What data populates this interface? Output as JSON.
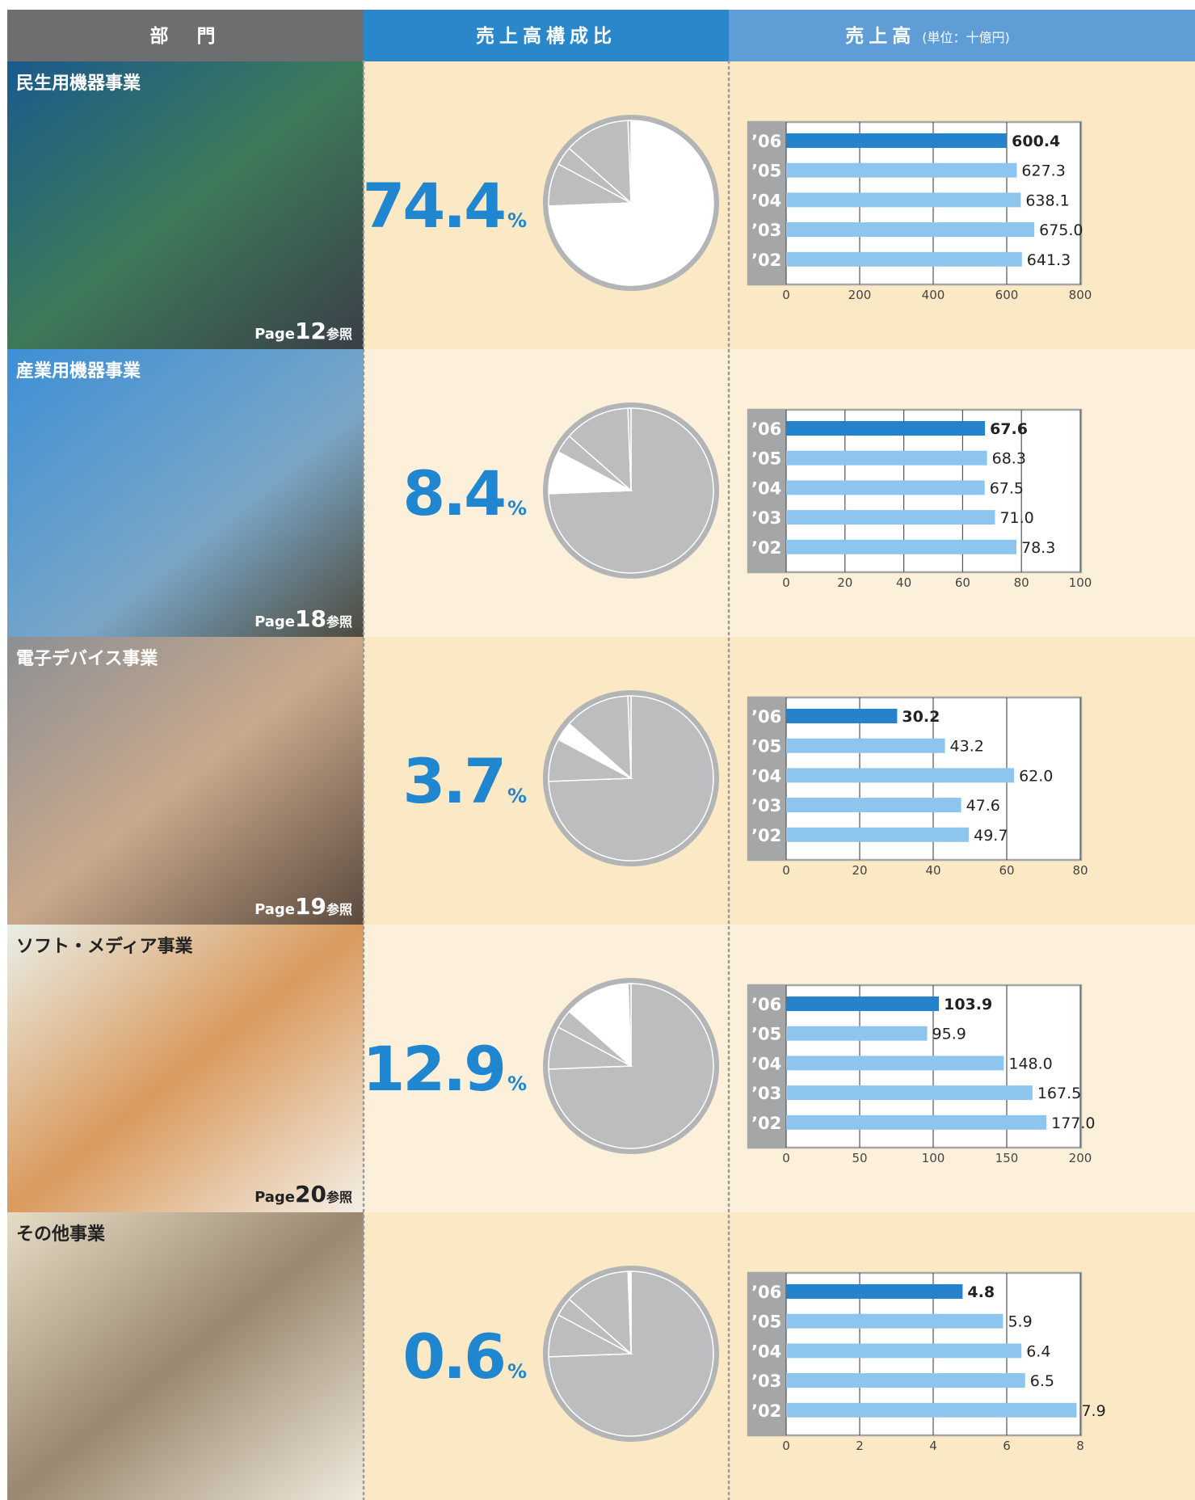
{
  "header": {
    "segment": "部　門",
    "share": "売上高構成比",
    "sales": "売上高",
    "unit": "(単位：十億円)"
  },
  "segments": [
    {
      "page": {
        "prefix": "Page",
        "number": 12,
        "suffix": "参照"
      }
    },
    {
      "page": {
        "prefix": "Page",
        "number": 18,
        "suffix": "参照"
      }
    },
    {
      "page": {
        "prefix": "Page",
        "number": 19,
        "suffix": "参照"
      }
    },
    {
      "page": {
        "prefix": "Page",
        "number": 20,
        "suffix": "参照"
      }
    },
    {
      "page": null
    }
  ],
  "chart_data": [
    {
      "type": "pie",
      "categories": [
        "民生用機器事業",
        "産業用機器事業",
        "電子デバイス事業",
        "ソフト・メディア事業",
        "その他事業"
      ],
      "values": [
        74.4,
        8.4,
        3.7,
        12.9,
        0.6
      ],
      "unit": "%",
      "color": "#bcbdbf",
      "highlight_color": "#ffffff",
      "label_color": "#1f86cf"
    },
    {
      "type": "barh",
      "categories": [
        "’06",
        "’05",
        "’04",
        "’03",
        "’02"
      ],
      "values": [
        600.4,
        627.3,
        638.1,
        675.0,
        641.3
      ],
      "value_labels": [
        "600.4",
        "627.3",
        "638.1",
        "675.0",
        "641.3"
      ],
      "xlim": [
        0,
        800
      ],
      "xticks": [
        0,
        200,
        400,
        600,
        800
      ],
      "color": "#8dc5ee",
      "highlight_color": "#2582cc",
      "grid": true
    },
    {
      "type": "barh",
      "categories": [
        "’06",
        "’05",
        "’04",
        "’03",
        "’02"
      ],
      "values": [
        67.6,
        68.3,
        67.5,
        71.0,
        78.3
      ],
      "value_labels": [
        "67.6",
        "68.3",
        "67.5",
        "71.0",
        "78.3"
      ],
      "xlim": [
        0,
        100
      ],
      "xticks": [
        0,
        20,
        40,
        60,
        80,
        100
      ],
      "color": "#8dc5ee",
      "highlight_color": "#2582cc",
      "grid": true
    },
    {
      "type": "barh",
      "categories": [
        "’06",
        "’05",
        "’04",
        "’03",
        "’02"
      ],
      "values": [
        30.2,
        43.2,
        62.0,
        47.6,
        49.7
      ],
      "value_labels": [
        "30.2",
        "43.2",
        "62.0",
        "47.6",
        "49.7"
      ],
      "xlim": [
        0,
        80
      ],
      "xticks": [
        0,
        20,
        40,
        60,
        80
      ],
      "color": "#8dc5ee",
      "highlight_color": "#2582cc",
      "grid": true
    },
    {
      "type": "barh",
      "categories": [
        "’06",
        "’05",
        "’04",
        "’03",
        "’02"
      ],
      "values": [
        103.9,
        95.9,
        148.0,
        167.5,
        177.0
      ],
      "value_labels": [
        "103.9",
        "95.9",
        "148.0",
        "167.5",
        "177.0"
      ],
      "xlim": [
        0,
        200
      ],
      "xticks": [
        0,
        50,
        100,
        150,
        200
      ],
      "color": "#8dc5ee",
      "highlight_color": "#2582cc",
      "grid": true
    },
    {
      "type": "barh",
      "categories": [
        "’06",
        "’05",
        "’04",
        "’03",
        "’02"
      ],
      "values": [
        4.8,
        5.9,
        6.4,
        6.5,
        7.9
      ],
      "value_labels": [
        "4.8",
        "5.9",
        "6.4",
        "6.5",
        "7.9"
      ],
      "xlim": [
        0,
        8
      ],
      "xticks": [
        0,
        2,
        4,
        6,
        8
      ],
      "color": "#8dc5ee",
      "highlight_color": "#2582cc",
      "grid": true
    }
  ]
}
